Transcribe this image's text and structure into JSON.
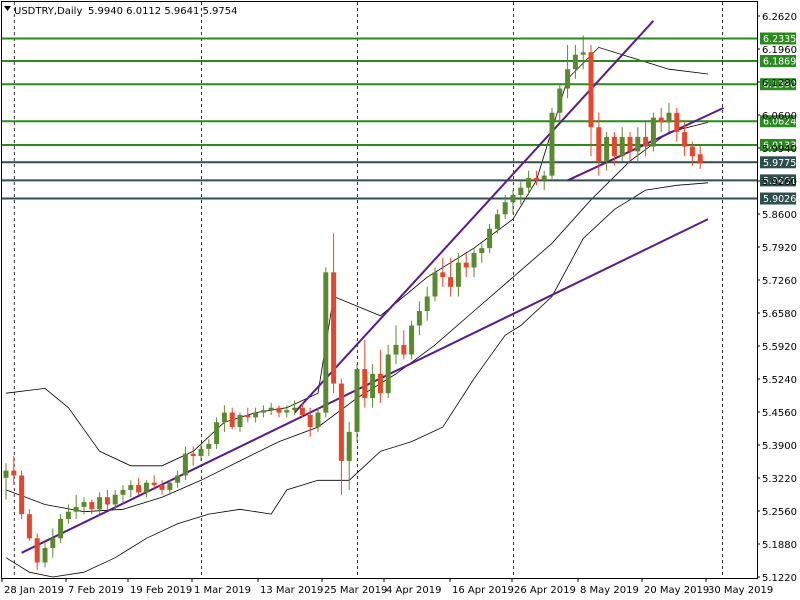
{
  "header": {
    "symbol_line": "USDTRY,Daily",
    "ohlc": "5.9940 6.0112 5.9641 5.9754"
  },
  "colors": {
    "bull": "#5a8a2e",
    "bear": "#e8452a",
    "support_resistance": "#2a8a1e",
    "current_levels": "#2f4f4f",
    "trendline": "#5a1a8a",
    "bands": "#000000"
  },
  "chart_data": {
    "type": "candlestick",
    "symbol": "USDTRY",
    "timeframe": "Daily",
    "ylim": [
      5.12,
      6.28
    ],
    "price_ticks": [
      "6.2620",
      "6.1960",
      "6.1280",
      "6.0600",
      "5.9940",
      "5.9260",
      "5.8600",
      "5.7920",
      "5.7260",
      "5.6580",
      "5.5920",
      "5.5240",
      "5.4560",
      "5.3900",
      "5.3220",
      "5.2560",
      "5.1880",
      "5.1220"
    ],
    "date_ticks": [
      "28 Jan 2019",
      "7 Feb 2019",
      "19 Feb 2019",
      "1 Mar 2019",
      "13 Mar 2019",
      "25 Mar 2019",
      "4 Apr 2019",
      "16 Apr 2019",
      "26 Apr 2019",
      "8 May 2019",
      "20 May 2019",
      "30 May 2019"
    ],
    "dashed_period_indexes": [
      1,
      25,
      45,
      65
    ],
    "horizontal_levels": [
      {
        "label": "6.2335",
        "value": 6.2335,
        "kind": "green"
      },
      {
        "label": "6.1869",
        "value": 6.1869,
        "kind": "green"
      },
      {
        "label": "6.1390",
        "value": 6.139,
        "kind": "green"
      },
      {
        "label": "6.0624",
        "value": 6.0624,
        "kind": "green"
      },
      {
        "label": "6.0133",
        "value": 6.0133,
        "kind": "green"
      },
      {
        "label": "5.9775",
        "value": 5.9775,
        "kind": "dark"
      },
      {
        "label": "5.9401",
        "value": 5.9401,
        "kind": "dark"
      },
      {
        "label": "5.9026",
        "value": 5.9026,
        "kind": "dark"
      }
    ],
    "trendlines": [
      {
        "from": [
          2,
          5.17
        ],
        "to": [
          90,
          5.86
        ]
      },
      {
        "from": [
          37,
          5.46
        ],
        "to": [
          83,
          6.27
        ]
      },
      {
        "from": [
          72,
          5.94
        ],
        "to": [
          92,
          6.09
        ]
      }
    ],
    "candles": [
      {
        "o": 5.325,
        "h": 5.355,
        "l": 5.28,
        "c": 5.34
      },
      {
        "o": 5.34,
        "h": 5.37,
        "l": 5.31,
        "c": 5.33
      },
      {
        "o": 5.33,
        "h": 5.34,
        "l": 5.24,
        "c": 5.25
      },
      {
        "o": 5.25,
        "h": 5.26,
        "l": 5.195,
        "c": 5.2
      },
      {
        "o": 5.2,
        "h": 5.21,
        "l": 5.135,
        "c": 5.15
      },
      {
        "o": 5.15,
        "h": 5.19,
        "l": 5.14,
        "c": 5.18
      },
      {
        "o": 5.18,
        "h": 5.22,
        "l": 5.16,
        "c": 5.2
      },
      {
        "o": 5.2,
        "h": 5.25,
        "l": 5.19,
        "c": 5.24
      },
      {
        "o": 5.24,
        "h": 5.27,
        "l": 5.23,
        "c": 5.255
      },
      {
        "o": 5.255,
        "h": 5.29,
        "l": 5.24,
        "c": 5.265
      },
      {
        "o": 5.265,
        "h": 5.285,
        "l": 5.25,
        "c": 5.275
      },
      {
        "o": 5.275,
        "h": 5.28,
        "l": 5.25,
        "c": 5.26
      },
      {
        "o": 5.26,
        "h": 5.295,
        "l": 5.25,
        "c": 5.285
      },
      {
        "o": 5.285,
        "h": 5.3,
        "l": 5.26,
        "c": 5.27
      },
      {
        "o": 5.27,
        "h": 5.3,
        "l": 5.26,
        "c": 5.29
      },
      {
        "o": 5.29,
        "h": 5.31,
        "l": 5.275,
        "c": 5.3
      },
      {
        "o": 5.3,
        "h": 5.32,
        "l": 5.285,
        "c": 5.31
      },
      {
        "o": 5.31,
        "h": 5.325,
        "l": 5.29,
        "c": 5.295
      },
      {
        "o": 5.295,
        "h": 5.32,
        "l": 5.285,
        "c": 5.315
      },
      {
        "o": 5.315,
        "h": 5.33,
        "l": 5.3,
        "c": 5.31
      },
      {
        "o": 5.31,
        "h": 5.32,
        "l": 5.29,
        "c": 5.3
      },
      {
        "o": 5.3,
        "h": 5.32,
        "l": 5.29,
        "c": 5.315
      },
      {
        "o": 5.315,
        "h": 5.34,
        "l": 5.305,
        "c": 5.33
      },
      {
        "o": 5.33,
        "h": 5.39,
        "l": 5.32,
        "c": 5.375
      },
      {
        "o": 5.375,
        "h": 5.39,
        "l": 5.35,
        "c": 5.37
      },
      {
        "o": 5.37,
        "h": 5.395,
        "l": 5.36,
        "c": 5.385
      },
      {
        "o": 5.385,
        "h": 5.405,
        "l": 5.37,
        "c": 5.395
      },
      {
        "o": 5.395,
        "h": 5.45,
        "l": 5.385,
        "c": 5.44
      },
      {
        "o": 5.44,
        "h": 5.475,
        "l": 5.42,
        "c": 5.46
      },
      {
        "o": 5.46,
        "h": 5.47,
        "l": 5.425,
        "c": 5.43
      },
      {
        "o": 5.43,
        "h": 5.46,
        "l": 5.42,
        "c": 5.455
      },
      {
        "o": 5.455,
        "h": 5.47,
        "l": 5.44,
        "c": 5.45
      },
      {
        "o": 5.45,
        "h": 5.47,
        "l": 5.44,
        "c": 5.46
      },
      {
        "o": 5.46,
        "h": 5.475,
        "l": 5.45,
        "c": 5.465
      },
      {
        "o": 5.465,
        "h": 5.48,
        "l": 5.455,
        "c": 5.47
      },
      {
        "o": 5.47,
        "h": 5.475,
        "l": 5.45,
        "c": 5.46
      },
      {
        "o": 5.46,
        "h": 5.475,
        "l": 5.45,
        "c": 5.465
      },
      {
        "o": 5.465,
        "h": 5.485,
        "l": 5.455,
        "c": 5.47
      },
      {
        "o": 5.47,
        "h": 5.48,
        "l": 5.45,
        "c": 5.455
      },
      {
        "o": 5.455,
        "h": 5.47,
        "l": 5.41,
        "c": 5.43
      },
      {
        "o": 5.43,
        "h": 5.47,
        "l": 5.42,
        "c": 5.46
      },
      {
        "o": 5.46,
        "h": 5.76,
        "l": 5.45,
        "c": 5.75
      },
      {
        "o": 5.75,
        "h": 5.83,
        "l": 5.5,
        "c": 5.52
      },
      {
        "o": 5.52,
        "h": 5.53,
        "l": 5.29,
        "c": 5.36
      },
      {
        "o": 5.36,
        "h": 5.44,
        "l": 5.3,
        "c": 5.42
      },
      {
        "o": 5.42,
        "h": 5.56,
        "l": 5.4,
        "c": 5.55
      },
      {
        "o": 5.55,
        "h": 5.61,
        "l": 5.47,
        "c": 5.49
      },
      {
        "o": 5.49,
        "h": 5.56,
        "l": 5.47,
        "c": 5.54
      },
      {
        "o": 5.54,
        "h": 5.59,
        "l": 5.48,
        "c": 5.5
      },
      {
        "o": 5.5,
        "h": 5.6,
        "l": 5.49,
        "c": 5.58
      },
      {
        "o": 5.58,
        "h": 5.64,
        "l": 5.56,
        "c": 5.6
      },
      {
        "o": 5.6,
        "h": 5.63,
        "l": 5.57,
        "c": 5.58
      },
      {
        "o": 5.58,
        "h": 5.65,
        "l": 5.57,
        "c": 5.64
      },
      {
        "o": 5.64,
        "h": 5.69,
        "l": 5.62,
        "c": 5.67
      },
      {
        "o": 5.67,
        "h": 5.72,
        "l": 5.65,
        "c": 5.7
      },
      {
        "o": 5.7,
        "h": 5.76,
        "l": 5.69,
        "c": 5.75
      },
      {
        "o": 5.75,
        "h": 5.78,
        "l": 5.72,
        "c": 5.74
      },
      {
        "o": 5.74,
        "h": 5.78,
        "l": 5.7,
        "c": 5.72
      },
      {
        "o": 5.72,
        "h": 5.79,
        "l": 5.7,
        "c": 5.77
      },
      {
        "o": 5.77,
        "h": 5.79,
        "l": 5.74,
        "c": 5.76
      },
      {
        "o": 5.76,
        "h": 5.8,
        "l": 5.74,
        "c": 5.79
      },
      {
        "o": 5.79,
        "h": 5.81,
        "l": 5.77,
        "c": 5.8
      },
      {
        "o": 5.8,
        "h": 5.85,
        "l": 5.79,
        "c": 5.84
      },
      {
        "o": 5.84,
        "h": 5.88,
        "l": 5.83,
        "c": 5.87
      },
      {
        "o": 5.87,
        "h": 5.91,
        "l": 5.86,
        "c": 5.895
      },
      {
        "o": 5.895,
        "h": 5.92,
        "l": 5.87,
        "c": 5.91
      },
      {
        "o": 5.91,
        "h": 5.94,
        "l": 5.89,
        "c": 5.925
      },
      {
        "o": 5.925,
        "h": 5.96,
        "l": 5.91,
        "c": 5.945
      },
      {
        "o": 5.945,
        "h": 5.96,
        "l": 5.93,
        "c": 5.94
      },
      {
        "o": 5.94,
        "h": 5.96,
        "l": 5.92,
        "c": 5.95
      },
      {
        "o": 5.95,
        "h": 6.09,
        "l": 5.94,
        "c": 6.08
      },
      {
        "o": 6.08,
        "h": 6.14,
        "l": 6.06,
        "c": 6.13
      },
      {
        "o": 6.13,
        "h": 6.22,
        "l": 6.11,
        "c": 6.17
      },
      {
        "o": 6.17,
        "h": 6.22,
        "l": 6.15,
        "c": 6.2
      },
      {
        "o": 6.2,
        "h": 6.24,
        "l": 6.17,
        "c": 6.205
      },
      {
        "o": 6.205,
        "h": 6.22,
        "l": 5.99,
        "c": 6.05
      },
      {
        "o": 6.05,
        "h": 6.08,
        "l": 5.95,
        "c": 5.98
      },
      {
        "o": 5.98,
        "h": 6.04,
        "l": 5.96,
        "c": 6.03
      },
      {
        "o": 6.03,
        "h": 6.04,
        "l": 5.97,
        "c": 5.99
      },
      {
        "o": 5.99,
        "h": 6.05,
        "l": 5.98,
        "c": 6.03
      },
      {
        "o": 6.03,
        "h": 6.04,
        "l": 5.98,
        "c": 6.0
      },
      {
        "o": 6.0,
        "h": 6.05,
        "l": 5.98,
        "c": 6.03
      },
      {
        "o": 6.03,
        "h": 6.06,
        "l": 5.99,
        "c": 6.01
      },
      {
        "o": 6.01,
        "h": 6.08,
        "l": 6.0,
        "c": 6.07
      },
      {
        "o": 6.07,
        "h": 6.09,
        "l": 6.04,
        "c": 6.06
      },
      {
        "o": 6.06,
        "h": 6.1,
        "l": 6.04,
        "c": 6.08
      },
      {
        "o": 6.08,
        "h": 6.09,
        "l": 6.02,
        "c": 6.04
      },
      {
        "o": 6.04,
        "h": 6.06,
        "l": 5.99,
        "c": 6.01
      },
      {
        "o": 6.01,
        "h": 6.02,
        "l": 5.97,
        "c": 5.99
      },
      {
        "o": 5.994,
        "h": 6.011,
        "l": 5.964,
        "c": 5.975
      }
    ],
    "bands": [
      {
        "name": "upper",
        "points": [
          [
            0,
            5.5
          ],
          [
            5,
            5.51
          ],
          [
            8,
            5.47
          ],
          [
            12,
            5.38
          ],
          [
            16,
            5.35
          ],
          [
            20,
            5.35
          ],
          [
            24,
            5.38
          ],
          [
            28,
            5.44
          ],
          [
            32,
            5.46
          ],
          [
            36,
            5.47
          ],
          [
            40,
            5.5
          ],
          [
            42,
            5.7
          ],
          [
            48,
            5.66
          ],
          [
            54,
            5.74
          ],
          [
            60,
            5.8
          ],
          [
            65,
            5.86
          ],
          [
            68,
            5.94
          ],
          [
            72,
            6.15
          ],
          [
            76,
            6.215
          ],
          [
            80,
            6.195
          ],
          [
            85,
            6.17
          ],
          [
            90,
            6.16
          ]
        ]
      },
      {
        "name": "middle",
        "points": [
          [
            0,
            5.3
          ],
          [
            5,
            5.27
          ],
          [
            10,
            5.255
          ],
          [
            15,
            5.26
          ],
          [
            20,
            5.285
          ],
          [
            25,
            5.32
          ],
          [
            30,
            5.36
          ],
          [
            35,
            5.4
          ],
          [
            40,
            5.43
          ],
          [
            45,
            5.49
          ],
          [
            50,
            5.54
          ],
          [
            55,
            5.6
          ],
          [
            60,
            5.67
          ],
          [
            65,
            5.74
          ],
          [
            70,
            5.81
          ],
          [
            75,
            5.9
          ],
          [
            80,
            5.98
          ],
          [
            85,
            6.04
          ],
          [
            90,
            6.06
          ]
        ]
      },
      {
        "name": "lower",
        "points": [
          [
            0,
            5.16
          ],
          [
            3,
            5.13
          ],
          [
            6,
            5.12
          ],
          [
            10,
            5.13
          ],
          [
            14,
            5.16
          ],
          [
            18,
            5.2
          ],
          [
            22,
            5.23
          ],
          [
            26,
            5.25
          ],
          [
            30,
            5.26
          ],
          [
            34,
            5.25
          ],
          [
            36,
            5.3
          ],
          [
            40,
            5.32
          ],
          [
            44,
            5.32
          ],
          [
            48,
            5.38
          ],
          [
            52,
            5.4
          ],
          [
            56,
            5.43
          ],
          [
            60,
            5.53
          ],
          [
            64,
            5.62
          ],
          [
            66,
            5.64
          ],
          [
            70,
            5.7
          ],
          [
            74,
            5.82
          ],
          [
            78,
            5.88
          ],
          [
            82,
            5.92
          ],
          [
            86,
            5.93
          ],
          [
            90,
            5.935
          ]
        ]
      }
    ]
  }
}
